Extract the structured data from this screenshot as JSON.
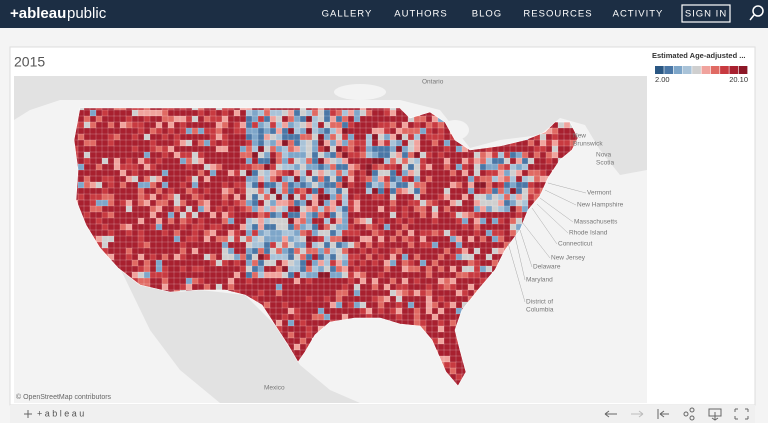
{
  "nav": {
    "brand": [
      "+ableau",
      "public"
    ],
    "links": [
      "GALLERY",
      "AUTHORS",
      "BLOG",
      "RESOURCES",
      "ACTIVITY"
    ],
    "sign_in": "SIGN IN"
  },
  "viz": {
    "title": "2015",
    "legend": {
      "title": "Estimated Age-adjusted ...",
      "min_label": "2.00",
      "max_label": "20.10",
      "colors": [
        "#2a5783",
        "#4a77a6",
        "#7ea6c9",
        "#a9c3d8",
        "#cfcfcf",
        "#f0a39d",
        "#e06a63",
        "#c83a40",
        "#a8202f",
        "#8c1727"
      ]
    },
    "map_labels": [
      {
        "lines": [
          "Ontario"
        ]
      },
      {
        "lines": [
          "New",
          "Brunswick"
        ]
      },
      {
        "lines": [
          "Nova",
          "Scotia"
        ]
      },
      {
        "lines": [
          "Vermont"
        ]
      },
      {
        "lines": [
          "New Hampshire"
        ]
      },
      {
        "lines": [
          "Massachusetts"
        ]
      },
      {
        "lines": [
          "Rhode Island"
        ]
      },
      {
        "lines": [
          "Connecticut"
        ]
      },
      {
        "lines": [
          "New Jersey"
        ]
      },
      {
        "lines": [
          "Delaware"
        ]
      },
      {
        "lines": [
          "Maryland"
        ]
      },
      {
        "lines": [
          "District of",
          "Columbia"
        ]
      },
      {
        "lines": [
          "Mexico"
        ]
      }
    ],
    "attribution": "© OpenStreetMap contributors"
  },
  "footer": {
    "logo": "+ a b l e a u"
  }
}
